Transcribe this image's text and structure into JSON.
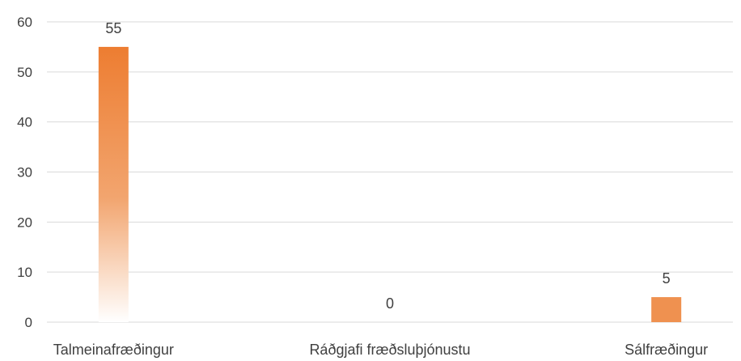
{
  "chart_data": {
    "type": "bar",
    "title": "",
    "xlabel": "",
    "ylabel": "",
    "categories": [
      "Talmeinafræðingur",
      "Ráðgjafi fræðsluþjónustu",
      "Sálfræðingur"
    ],
    "values": [
      55,
      0,
      5
    ],
    "ylim": [
      0,
      60
    ],
    "yticks": [
      0,
      10,
      20,
      30,
      40,
      50,
      60
    ],
    "yticks_text": [
      "0",
      "10",
      "20",
      "30",
      "40",
      "50",
      "60"
    ],
    "data_labels": [
      "55",
      "0",
      "5"
    ],
    "grid": true,
    "legend": "none",
    "colors": {
      "bar_top": "#ed7d31",
      "bar_bottom": "#ffffff",
      "grid": "#d9d9d9",
      "text": "#404040"
    }
  }
}
